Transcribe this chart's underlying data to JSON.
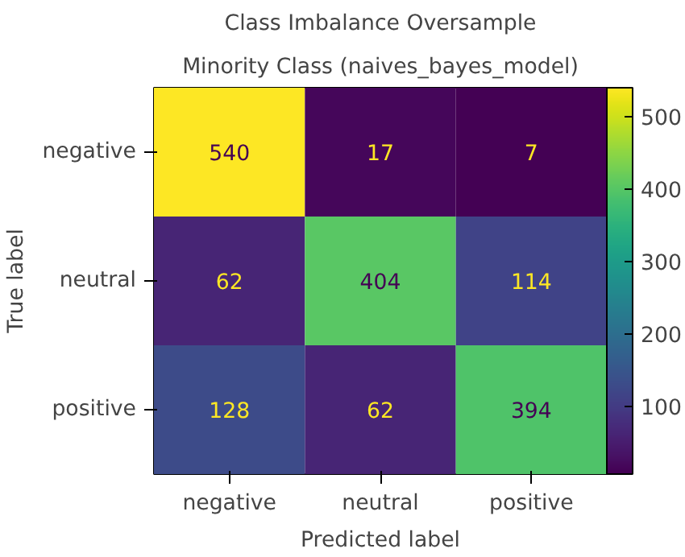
{
  "chart_data": {
    "type": "heatmap",
    "title": "Class Imbalance Oversample",
    "subtitle": "Minority Class (naives_bayes_model)",
    "xlabel": "Predicted label",
    "ylabel": "True label",
    "categories": [
      "negative",
      "neutral",
      "positive"
    ],
    "y_categories": [
      "negative",
      "neutral",
      "positive"
    ],
    "cells": [
      [
        540,
        17,
        7
      ],
      [
        62,
        404,
        114
      ],
      [
        128,
        62,
        394
      ]
    ],
    "clim": [
      7,
      540
    ],
    "cticks": [
      100,
      200,
      300,
      400,
      500
    ],
    "data_labels": true,
    "grid": false
  }
}
